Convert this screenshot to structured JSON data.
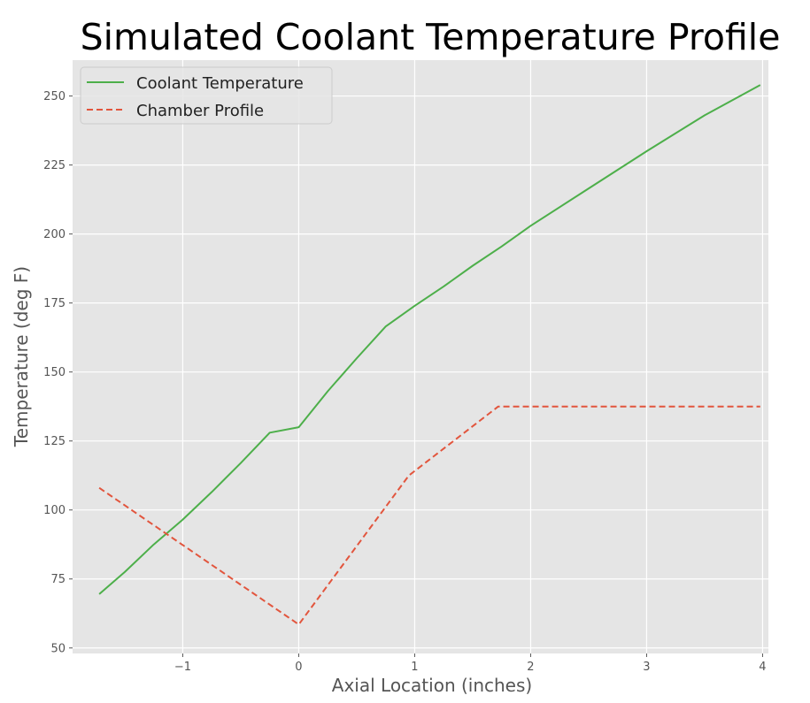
{
  "chart_data": {
    "type": "line",
    "title": "Simulated Coolant Temperature Profile",
    "xlabel": "Axial Location (inches)",
    "ylabel": "Temperature (deg F)",
    "xlim": [
      -1.95,
      4.05
    ],
    "ylim": [
      48,
      263
    ],
    "xticks": [
      -1,
      0,
      1,
      2,
      3,
      4
    ],
    "xtick_labels": [
      "−1",
      "0",
      "1",
      "2",
      "3",
      "4"
    ],
    "yticks": [
      50,
      75,
      100,
      125,
      150,
      175,
      200,
      225,
      250
    ],
    "ytick_labels": [
      "50",
      "75",
      "100",
      "125",
      "150",
      "175",
      "200",
      "225",
      "250"
    ],
    "grid": true,
    "background": "#e5e5e5",
    "legend_position": "top-left",
    "series": [
      {
        "name": "Coolant Temperature",
        "color": "#4daf4a",
        "style": "solid",
        "x": [
          -1.72,
          -1.5,
          -1.25,
          -1.0,
          -0.75,
          -0.5,
          -0.25,
          0.0,
          0.25,
          0.5,
          0.75,
          1.0,
          1.25,
          1.5,
          1.75,
          2.0,
          2.5,
          3.0,
          3.5,
          3.98
        ],
        "y": [
          69.5,
          77.5,
          87.5,
          96.5,
          106.5,
          117,
          128,
          130,
          143,
          155,
          166.5,
          174,
          181,
          188.5,
          195.5,
          203,
          216.5,
          230,
          243,
          254
        ]
      },
      {
        "name": "Chamber Profile",
        "color": "#e2553d",
        "style": "dashed",
        "x": [
          -1.72,
          0.0,
          0.95,
          1.72,
          3.98
        ],
        "y": [
          108,
          58.5,
          112.5,
          137.5,
          137.5
        ]
      }
    ]
  }
}
